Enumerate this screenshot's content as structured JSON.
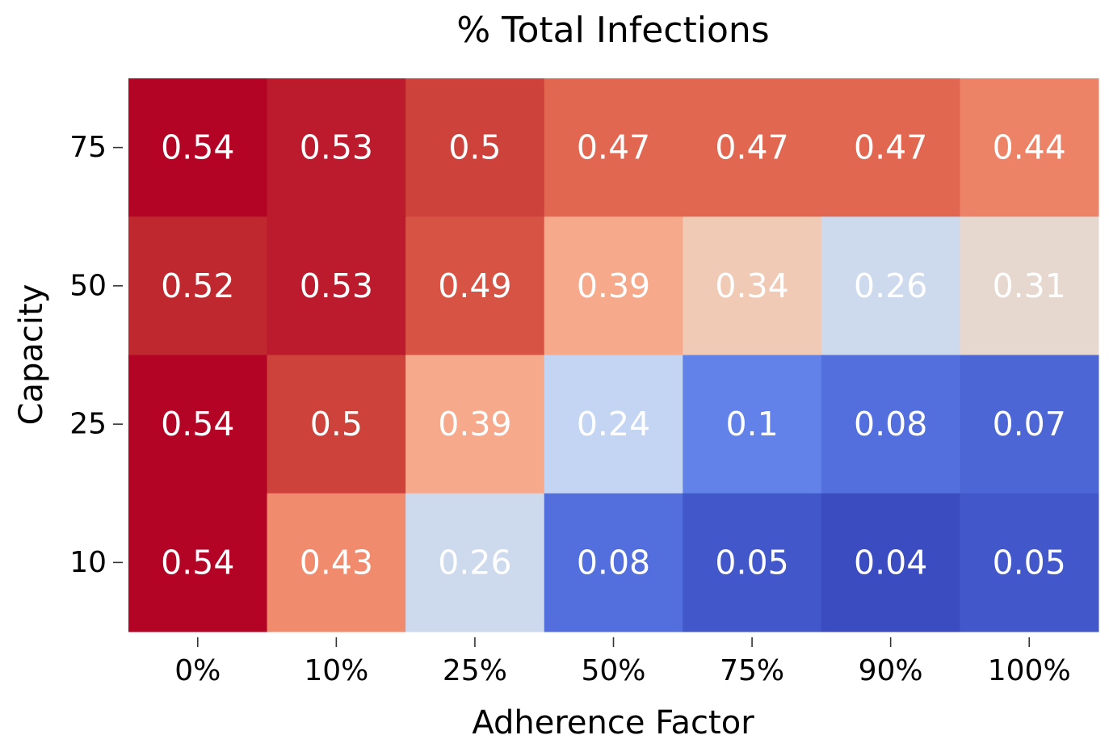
{
  "chart_data": {
    "type": "heatmap",
    "title": "% Total Infections",
    "xlabel": "Adherence Factor",
    "ylabel": "Capacity",
    "x_categories": [
      "0%",
      "10%",
      "25%",
      "50%",
      "75%",
      "90%",
      "100%"
    ],
    "y_categories": [
      "75",
      "50",
      "25",
      "10"
    ],
    "values": [
      [
        0.54,
        0.53,
        0.5,
        0.47,
        0.47,
        0.47,
        0.44
      ],
      [
        0.52,
        0.53,
        0.49,
        0.39,
        0.34,
        0.26,
        0.31
      ],
      [
        0.54,
        0.5,
        0.39,
        0.24,
        0.1,
        0.08,
        0.07
      ],
      [
        0.54,
        0.43,
        0.26,
        0.08,
        0.05,
        0.04,
        0.05
      ]
    ],
    "colormap": "coolwarm",
    "colorbar": false,
    "cell_colors": [
      [
        "#b40426",
        "#bb1b2c",
        "#cd423b",
        "#e16751",
        "#e16751",
        "#e16751",
        "#ed8366"
      ],
      [
        "#c0282f",
        "#bb1b2c",
        "#d75445",
        "#f6a98b",
        "#f0cab5",
        "#cdd9ec",
        "#e6d7cf"
      ],
      [
        "#b40426",
        "#cd423b",
        "#f6a98b",
        "#c4d5f3",
        "#6282ea",
        "#536edd",
        "#4c66d6"
      ],
      [
        "#b40426",
        "#f08b6e",
        "#cdd9ec",
        "#536edd",
        "#4257c9",
        "#3b4cc0",
        "#4257c9"
      ]
    ]
  }
}
